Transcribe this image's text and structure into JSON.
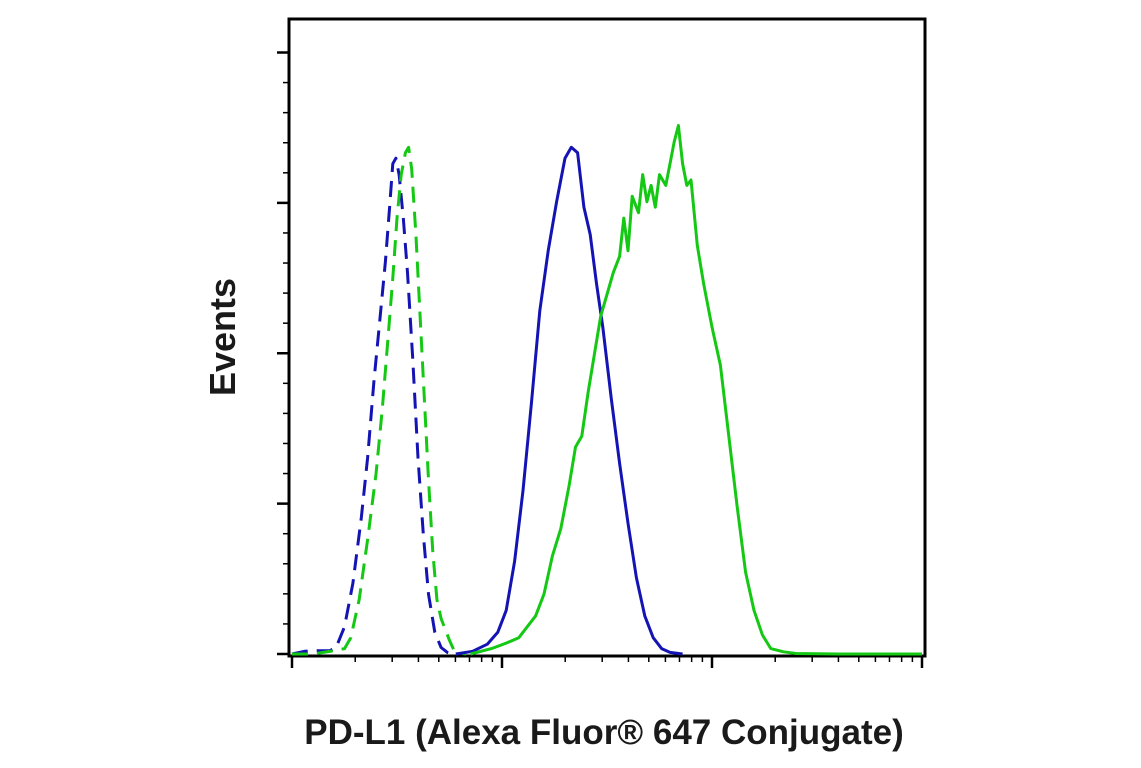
{
  "chart_data": {
    "type": "line",
    "title": "",
    "xlabel": "PD-L1 (Alexa Fluor® 647 Conjugate)",
    "ylabel": "Events",
    "x_scale": "log",
    "x_tick_labels_shown": false,
    "y_tick_labels_shown": false,
    "grid": false,
    "legend": "none",
    "series": [
      {
        "color": "#1414b4",
        "line_style": "dashed",
        "points": [
          [
            0,
            0
          ],
          [
            0.06,
            0.005
          ],
          [
            0.12,
            0.006
          ],
          [
            0.18,
            0.006
          ],
          [
            0.21,
            0.012
          ],
          [
            0.25,
            0.05
          ],
          [
            0.29,
            0.13
          ],
          [
            0.33,
            0.25
          ],
          [
            0.36,
            0.36
          ],
          [
            0.39,
            0.5
          ],
          [
            0.42,
            0.62
          ],
          [
            0.445,
            0.72
          ],
          [
            0.465,
            0.82
          ],
          [
            0.48,
            0.9
          ],
          [
            0.495,
            0.91
          ],
          [
            0.51,
            0.88
          ],
          [
            0.53,
            0.8
          ],
          [
            0.55,
            0.7
          ],
          [
            0.575,
            0.54
          ],
          [
            0.6,
            0.36
          ],
          [
            0.625,
            0.22
          ],
          [
            0.65,
            0.11
          ],
          [
            0.68,
            0.04
          ],
          [
            0.71,
            0.012
          ],
          [
            0.74,
            0.003
          ],
          [
            0.77,
            0
          ]
        ]
      },
      {
        "color": "#14c814",
        "line_style": "dashed",
        "points": [
          [
            0,
            0
          ],
          [
            0.1,
            0
          ],
          [
            0.2,
            0.006
          ],
          [
            0.25,
            0.01
          ],
          [
            0.28,
            0.03
          ],
          [
            0.32,
            0.1
          ],
          [
            0.36,
            0.21
          ],
          [
            0.4,
            0.33
          ],
          [
            0.43,
            0.45
          ],
          [
            0.455,
            0.57
          ],
          [
            0.48,
            0.69
          ],
          [
            0.5,
            0.8
          ],
          [
            0.52,
            0.88
          ],
          [
            0.54,
            0.92
          ],
          [
            0.555,
            0.93
          ],
          [
            0.57,
            0.89
          ],
          [
            0.59,
            0.77
          ],
          [
            0.61,
            0.62
          ],
          [
            0.63,
            0.47
          ],
          [
            0.65,
            0.32
          ],
          [
            0.67,
            0.19
          ],
          [
            0.69,
            0.1
          ],
          [
            0.71,
            0.065
          ],
          [
            0.73,
            0.045
          ],
          [
            0.75,
            0.025
          ],
          [
            0.77,
            0.008
          ],
          [
            0.8,
            0.002
          ],
          [
            0.83,
            0
          ]
        ]
      },
      {
        "color": "#1414b4",
        "line_style": "solid",
        "points": [
          [
            0.78,
            0
          ],
          [
            0.86,
            0.005
          ],
          [
            0.93,
            0.018
          ],
          [
            0.98,
            0.04
          ],
          [
            1.02,
            0.08
          ],
          [
            1.06,
            0.17
          ],
          [
            1.1,
            0.3
          ],
          [
            1.14,
            0.46
          ],
          [
            1.18,
            0.63
          ],
          [
            1.22,
            0.74
          ],
          [
            1.26,
            0.83
          ],
          [
            1.3,
            0.91
          ],
          [
            1.33,
            0.93
          ],
          [
            1.36,
            0.92
          ],
          [
            1.39,
            0.82
          ],
          [
            1.42,
            0.77
          ],
          [
            1.45,
            0.68
          ],
          [
            1.48,
            0.6
          ],
          [
            1.52,
            0.47
          ],
          [
            1.56,
            0.35
          ],
          [
            1.6,
            0.24
          ],
          [
            1.64,
            0.14
          ],
          [
            1.68,
            0.07
          ],
          [
            1.72,
            0.03
          ],
          [
            1.76,
            0.01
          ],
          [
            1.8,
            0.003
          ],
          [
            1.86,
            0
          ]
        ]
      },
      {
        "color": "#14c814",
        "line_style": "solid",
        "points": [
          [
            0.85,
            0
          ],
          [
            0.95,
            0.01
          ],
          [
            1.02,
            0.02
          ],
          [
            1.08,
            0.03
          ],
          [
            1.12,
            0.05
          ],
          [
            1.16,
            0.07
          ],
          [
            1.2,
            0.11
          ],
          [
            1.24,
            0.18
          ],
          [
            1.28,
            0.23
          ],
          [
            1.32,
            0.31
          ],
          [
            1.35,
            0.38
          ],
          [
            1.38,
            0.4
          ],
          [
            1.41,
            0.48
          ],
          [
            1.44,
            0.55
          ],
          [
            1.47,
            0.62
          ],
          [
            1.5,
            0.66
          ],
          [
            1.53,
            0.7
          ],
          [
            1.56,
            0.73
          ],
          [
            1.58,
            0.8
          ],
          [
            1.6,
            0.74
          ],
          [
            1.62,
            0.84
          ],
          [
            1.65,
            0.81
          ],
          [
            1.67,
            0.88
          ],
          [
            1.69,
            0.83
          ],
          [
            1.71,
            0.86
          ],
          [
            1.73,
            0.82
          ],
          [
            1.75,
            0.88
          ],
          [
            1.78,
            0.86
          ],
          [
            1.8,
            0.9
          ],
          [
            1.82,
            0.94
          ],
          [
            1.84,
            0.97
          ],
          [
            1.86,
            0.9
          ],
          [
            1.88,
            0.86
          ],
          [
            1.9,
            0.87
          ],
          [
            1.93,
            0.75
          ],
          [
            1.96,
            0.68
          ],
          [
            2.0,
            0.6
          ],
          [
            2.04,
            0.53
          ],
          [
            2.08,
            0.4
          ],
          [
            2.12,
            0.27
          ],
          [
            2.16,
            0.15
          ],
          [
            2.2,
            0.08
          ],
          [
            2.24,
            0.035
          ],
          [
            2.28,
            0.01
          ],
          [
            2.34,
            0.004
          ],
          [
            2.4,
            0.001
          ],
          [
            2.6,
            0
          ],
          [
            2.8,
            0
          ],
          [
            3.0,
            0
          ]
        ]
      }
    ],
    "xlim": [
      0,
      3.0
    ],
    "ylim": [
      0,
      1.16
    ]
  }
}
